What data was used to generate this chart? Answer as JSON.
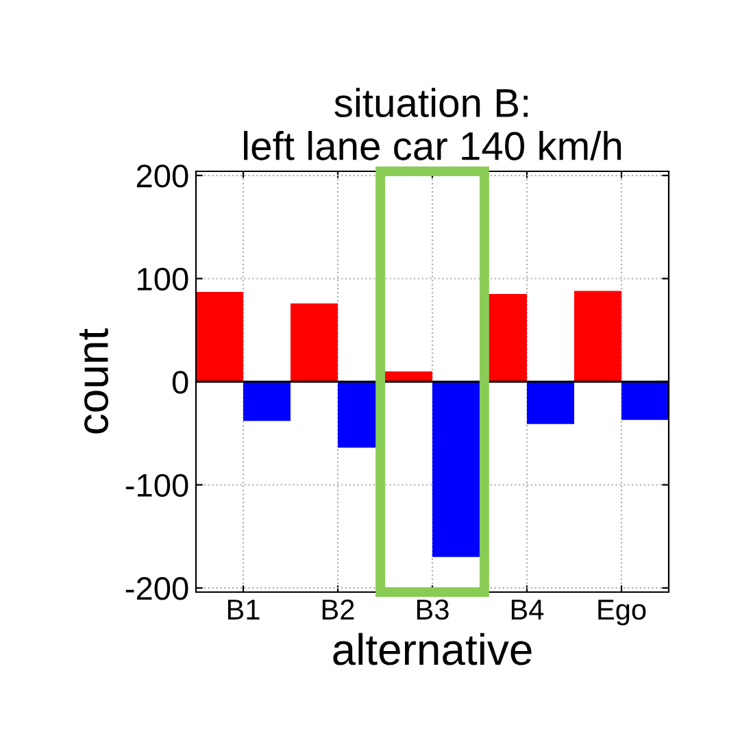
{
  "chart_data": {
    "type": "bar",
    "title": "situation B:\nleft lane car 140 km/h",
    "xlabel": "alternative",
    "ylabel": "count",
    "categories": [
      "B1",
      "B2",
      "B3",
      "B4",
      "Ego"
    ],
    "series": [
      {
        "color": "#ff0000",
        "values": [
          87,
          76,
          10,
          85,
          88
        ]
      },
      {
        "color": "#0000ff",
        "values": [
          -38,
          -64,
          -170,
          -41,
          -37
        ]
      }
    ],
    "ylim": [
      -204,
      204
    ],
    "yticks": [
      -200,
      -100,
      0,
      100,
      200
    ],
    "grid": true,
    "legend": false
  }
}
